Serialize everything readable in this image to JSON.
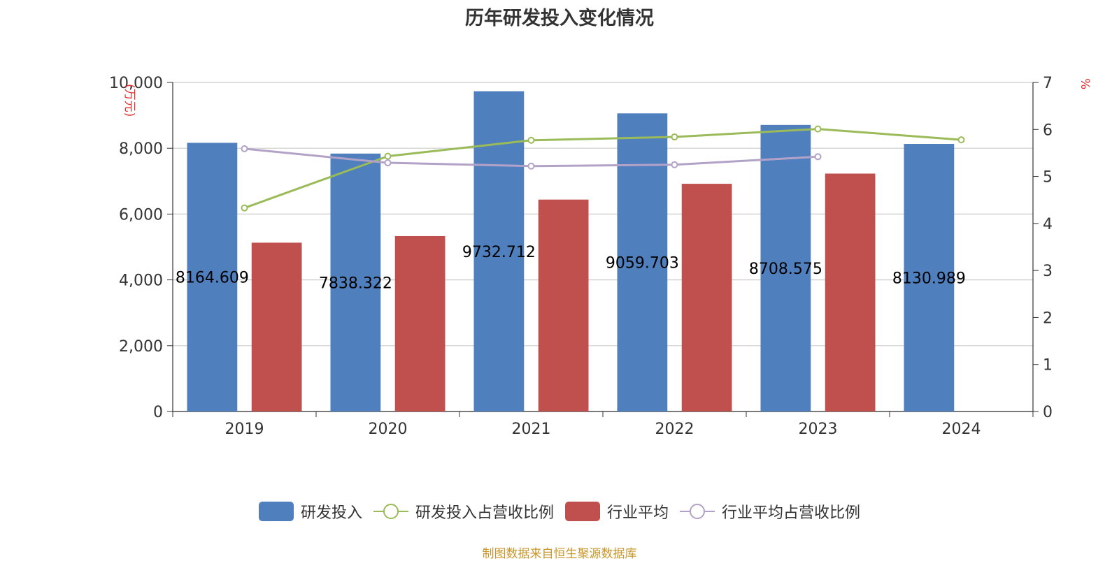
{
  "chart_data": {
    "type": "bar",
    "title": "历年研发投入变化情况",
    "categories": [
      "2019",
      "2020",
      "2021",
      "2022",
      "2023",
      "2024"
    ],
    "y_left": {
      "unit_label": "(万元)",
      "ylim": [
        0,
        10000
      ],
      "ticks": [
        "0",
        "2,000",
        "4,000",
        "6,000",
        "8,000",
        "10,000"
      ]
    },
    "y_right": {
      "unit_label": "%",
      "ylim": [
        0,
        7
      ],
      "ticks": [
        "0",
        "1",
        "2",
        "3",
        "4",
        "5",
        "6",
        "7"
      ]
    },
    "series": [
      {
        "name": "研发投入",
        "kind": "bar",
        "color": "#4f7fbd",
        "values": [
          8164.609,
          7838.322,
          9732.712,
          9059.703,
          8708.575,
          8130.989
        ],
        "labels": [
          "8164.609",
          "7838.322",
          "9732.712",
          "9059.703",
          "8708.575",
          "8130.989"
        ]
      },
      {
        "name": "研发投入占营收比例",
        "kind": "line",
        "axis": "right",
        "color": "#9bbb59",
        "values": [
          4.33,
          5.43,
          5.77,
          5.84,
          6.01,
          5.78
        ]
      },
      {
        "name": "行业平均",
        "kind": "bar",
        "color": "#c0504d",
        "values": [
          5130,
          5330,
          6440,
          6920,
          7230,
          null
        ]
      },
      {
        "name": "行业平均占营收比例",
        "kind": "line",
        "axis": "right",
        "color": "#b3a2c7",
        "values": [
          5.59,
          5.29,
          5.22,
          5.25,
          5.42,
          null
        ]
      }
    ],
    "grid": true,
    "legend_position": "bottom"
  },
  "footer": {
    "source": "制图数据来自恒生聚源数据库"
  }
}
